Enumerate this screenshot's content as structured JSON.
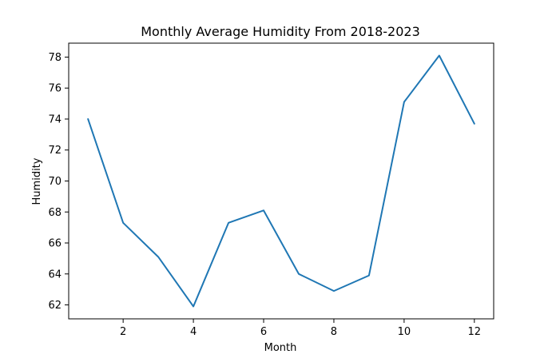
{
  "chart_data": {
    "type": "line",
    "title": "Monthly Average Humidity From 2018-2023",
    "xlabel": "Month",
    "ylabel": "Humidity",
    "x": [
      1,
      2,
      3,
      4,
      5,
      6,
      7,
      8,
      9,
      10,
      11,
      12
    ],
    "series": [
      {
        "values": [
          74.0,
          67.3,
          65.1,
          61.9,
          67.3,
          68.1,
          64.0,
          62.9,
          63.9,
          75.1,
          78.1,
          73.7
        ],
        "color": "#1f77b4"
      }
    ],
    "xlim": [
      0.45,
      12.55
    ],
    "ylim": [
      61.1,
      78.9
    ],
    "x_ticks": [
      2,
      4,
      6,
      8,
      10,
      12
    ],
    "y_ticks": [
      62,
      64,
      66,
      68,
      70,
      72,
      74,
      76,
      78
    ],
    "grid": false,
    "legend": "none"
  }
}
